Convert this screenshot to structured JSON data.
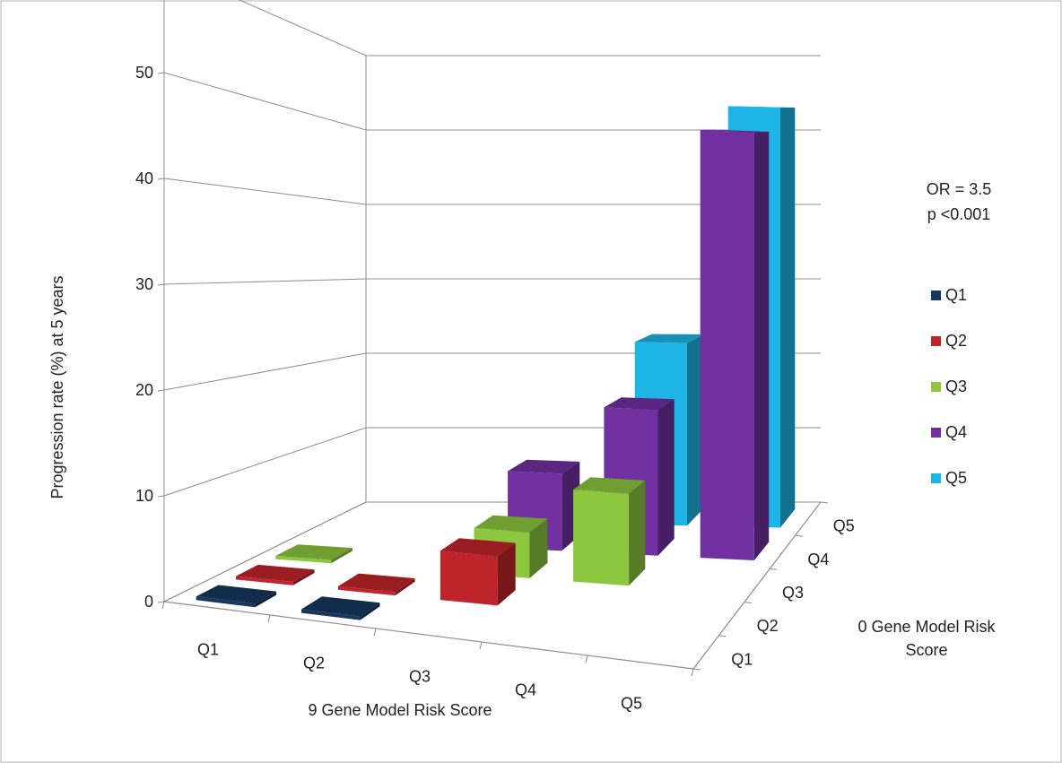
{
  "chart_data": {
    "type": "bar",
    "subtype": "3d-bar",
    "title": "",
    "ylabel": "Progression rate (%) at 5 years",
    "xlabel": "9 Gene Model Risk Score",
    "zlabel": "0 Gene Model Risk Score",
    "ylim": [
      0,
      60
    ],
    "yticks": [
      "0",
      "10",
      "20",
      "30",
      "40",
      "50",
      "60"
    ],
    "categories": [
      "Q1",
      "Q2",
      "Q3",
      "Q4",
      "Q5"
    ],
    "depth_categories": [
      "Q1",
      "Q2",
      "Q3",
      "Q4",
      "Q5"
    ],
    "grid": true,
    "legend_position": "right",
    "annotation": [
      "OR = 3.5",
      "p <0.001"
    ],
    "series": [
      {
        "name": "Q1",
        "color": "#17375e",
        "values": [
          0,
          0,
          null,
          null,
          null
        ]
      },
      {
        "name": "Q2",
        "color": "#c0242b",
        "values": [
          0,
          0,
          5,
          null,
          null
        ]
      },
      {
        "name": "Q3",
        "color": "#8dc63f",
        "values": [
          0,
          null,
          5,
          10,
          null
        ]
      },
      {
        "name": "Q4",
        "color": "#7030a0",
        "values": [
          null,
          null,
          9,
          17,
          50
        ]
      },
      {
        "name": "Q5",
        "color": "#1fb4e6",
        "values": [
          null,
          null,
          null,
          23,
          53
        ]
      }
    ]
  }
}
